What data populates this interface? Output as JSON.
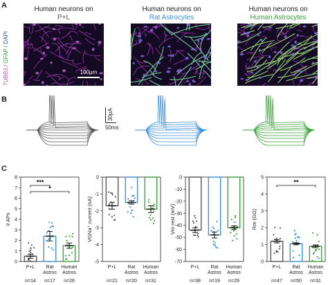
{
  "panels": {
    "A": "A",
    "B": "B",
    "C": "C"
  },
  "columns": [
    {
      "line1": "Human neurons on",
      "line2": "P+L",
      "color": "#555555"
    },
    {
      "line1": "Human neurons on",
      "line2": "Rat Astrocytes",
      "color": "#3a8fd8"
    },
    {
      "line1": "Human neurons on",
      "line2": "Human Astrocytes",
      "color": "#3aa23a"
    }
  ],
  "stain_label": {
    "tubb3": "TUBB3",
    "gfap": "GFAP",
    "dapi": "DAPI",
    "sep": " / "
  },
  "scalebar_micro": "100µm",
  "scalebar_trace": {
    "v": "30pA",
    "h": "50ms"
  },
  "colors": {
    "gray": "#555555",
    "blue": "#3a8fd8",
    "green": "#3aa23a",
    "magenta": "#c050c0",
    "dapi": "#3a4aa8"
  },
  "chart_data": [
    {
      "type": "bar",
      "id": "aps",
      "ylabel": "# APs",
      "ylim": [
        0,
        8
      ],
      "yticks": [
        0,
        1,
        2,
        3,
        4,
        5,
        6,
        7,
        8
      ],
      "categories": [
        "P+L",
        "Rat Astros",
        "Human Astros"
      ],
      "n_labels": [
        "n=14",
        "n=17",
        "n=26"
      ],
      "values": [
        0.5,
        2.4,
        1.5
      ],
      "sem": [
        0.2,
        0.45,
        0.25
      ],
      "significance": [
        {
          "from": 0,
          "to": 1,
          "label": "***"
        },
        {
          "from": 0,
          "to": 2,
          "label": "*"
        }
      ]
    },
    {
      "type": "bar",
      "id": "vgna",
      "ylabel": "VGNa⁺ current (nA)",
      "ylim": [
        -5,
        0
      ],
      "yticks": [
        0,
        -1,
        -2,
        -3,
        -4,
        -5
      ],
      "categories": [
        "P+L",
        "Rat Astros",
        "Human Astros"
      ],
      "n_labels": [
        "n=21",
        "n=20",
        "n=31"
      ],
      "values": [
        -1.7,
        -1.5,
        -1.9
      ],
      "sem": [
        0.2,
        0.1,
        0.2
      ],
      "significance": []
    },
    {
      "type": "bar",
      "id": "vm",
      "ylabel": "Vm rest (mV)",
      "ylim": [
        -70,
        0
      ],
      "yticks": [
        0,
        -10,
        -20,
        -30,
        -40,
        -50,
        -60,
        -70
      ],
      "categories": [
        "P+L",
        "Rat Astros",
        "Human Astros"
      ],
      "n_labels": [
        "n=38",
        "n=19",
        "n=29"
      ],
      "values": [
        -44,
        -48,
        -42
      ],
      "sem": [
        2,
        2.5,
        1.5
      ],
      "significance": []
    },
    {
      "type": "bar",
      "id": "rm",
      "ylabel": "Rm (GΩ)",
      "ylim": [
        0,
        5
      ],
      "yticks": [
        0,
        1,
        2,
        3,
        4,
        5
      ],
      "categories": [
        "P+L",
        "Rat Astros",
        "Human Astros"
      ],
      "n_labels": [
        "n=47",
        "n=50",
        "n=31"
      ],
      "values": [
        1.2,
        1.05,
        0.9
      ],
      "sem": [
        0.1,
        0.06,
        0.08
      ],
      "significance": [
        {
          "from": 0,
          "to": 2,
          "label": "**"
        }
      ]
    }
  ]
}
